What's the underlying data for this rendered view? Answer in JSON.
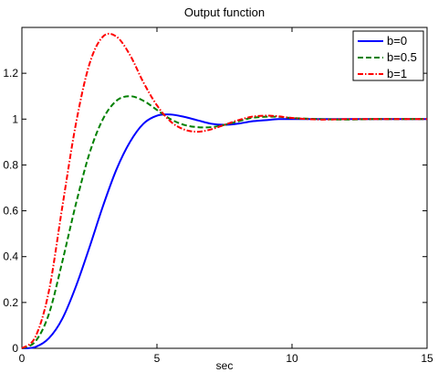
{
  "chart_data": {
    "type": "line",
    "title": "Output function",
    "xlabel": "sec",
    "ylabel": "",
    "xlim": [
      0,
      15
    ],
    "ylim": [
      0,
      1.4
    ],
    "xticks": [
      0,
      5,
      10,
      15
    ],
    "yticks": [
      0,
      0.2,
      0.4,
      0.6,
      0.8,
      1,
      1.2
    ],
    "xtick_labels": [
      "0",
      "5",
      "10",
      "15"
    ],
    "ytick_labels": [
      "0",
      "0.2",
      "0.4",
      "0.6",
      "0.8",
      "1",
      "1.2"
    ],
    "grid": false,
    "legend_position": "top-right",
    "x": [
      0,
      0.5,
      1,
      1.5,
      2,
      2.5,
      3,
      3.5,
      4,
      4.5,
      5,
      5.5,
      6,
      6.5,
      7,
      7.5,
      8,
      8.5,
      9,
      9.5,
      10,
      11,
      12,
      13,
      14,
      15
    ],
    "series": [
      {
        "name": "b=0",
        "color": "#0000ff",
        "style": "solid",
        "values": [
          0,
          0.006,
          0.044,
          0.13,
          0.27,
          0.44,
          0.62,
          0.78,
          0.9,
          0.98,
          1.015,
          1.02,
          1.01,
          0.995,
          0.98,
          0.975,
          0.98,
          0.99,
          0.995,
          1.0,
          1.0,
          1.0,
          1.0,
          1.0,
          1.0,
          1.0
        ]
      },
      {
        "name": "b=0.5",
        "color": "#008000",
        "style": "dashed",
        "values": [
          0,
          0.03,
          0.15,
          0.38,
          0.63,
          0.85,
          1.0,
          1.08,
          1.1,
          1.08,
          1.04,
          1.0,
          0.975,
          0.965,
          0.965,
          0.975,
          0.99,
          1.005,
          1.01,
          1.01,
          1.005,
          1.0,
          0.998,
          1.0,
          1.0,
          1.0
        ]
      },
      {
        "name": "b=1",
        "color": "#ff0000",
        "style": "dash-dot",
        "values": [
          0,
          0.05,
          0.25,
          0.62,
          0.98,
          1.24,
          1.36,
          1.36,
          1.28,
          1.16,
          1.06,
          0.99,
          0.955,
          0.945,
          0.955,
          0.975,
          0.995,
          1.01,
          1.015,
          1.012,
          1.005,
          0.998,
          1.0,
          1.0,
          1.0,
          1.0
        ]
      }
    ]
  }
}
